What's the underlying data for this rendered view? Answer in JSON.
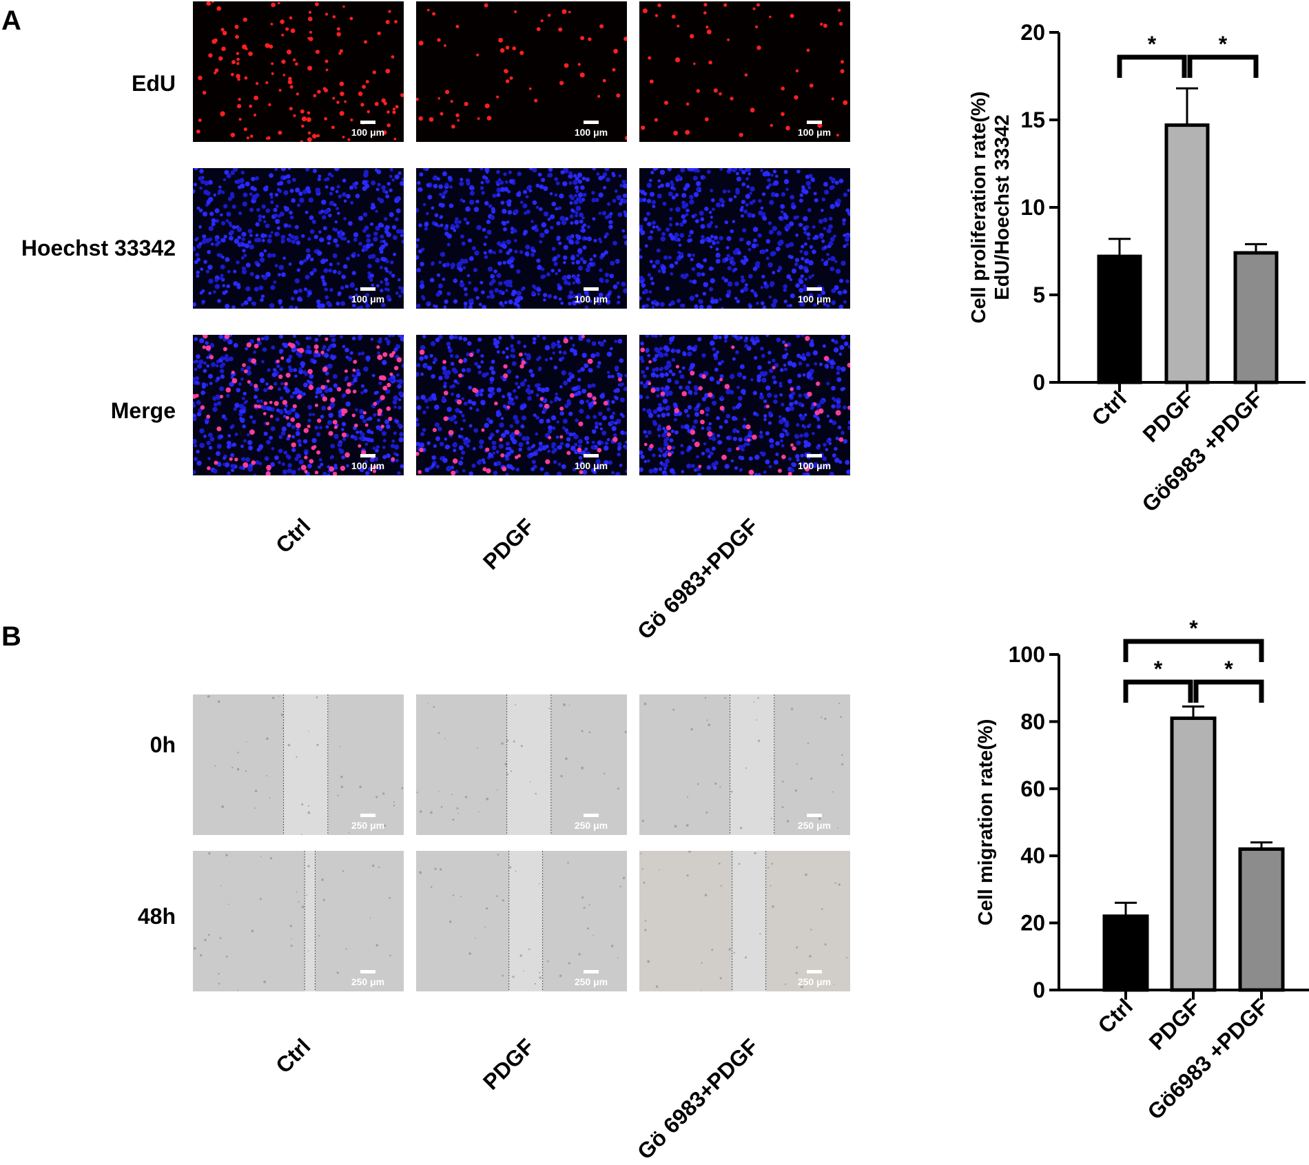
{
  "panelA": {
    "letter": "A",
    "rows": [
      "EdU",
      "Hoechst 33342",
      "Merge"
    ],
    "columns": [
      "Ctrl",
      "PDGF",
      "Gö 6983+PDGF"
    ],
    "scalebar": "100 μm"
  },
  "panelB": {
    "letter": "B",
    "rows": [
      "0h",
      "48h"
    ],
    "columns": [
      "Ctrl",
      "PDGF",
      "Gö 6983+PDGF"
    ],
    "scalebar": "250 μm"
  },
  "chart_data": [
    {
      "type": "bar",
      "categories": [
        "Ctrl",
        "PDGF",
        "Gö6983 +PDGF"
      ],
      "values": [
        7.2,
        14.7,
        7.4
      ],
      "errors": [
        1.0,
        2.1,
        0.5
      ],
      "bar_colors": [
        "#000000",
        "#b3b3b3",
        "#8c8c8c"
      ],
      "ylabel": "Cell proliferation rate(%)",
      "ylabel2": "EdU/Hoechst 33342",
      "ylim": [
        0,
        20
      ],
      "yticks": [
        "0",
        "5",
        "10",
        "15",
        "20"
      ],
      "significance": [
        {
          "from": 0,
          "to": 1,
          "label": "*",
          "level": 1
        },
        {
          "from": 1,
          "to": 2,
          "label": "*",
          "level": 1
        }
      ]
    },
    {
      "type": "bar",
      "categories": [
        "Ctrl",
        "PDGF",
        "Gö6983 +PDGF"
      ],
      "values": [
        22,
        81,
        42
      ],
      "errors": [
        4,
        3.5,
        2
      ],
      "bar_colors": [
        "#000000",
        "#b3b3b3",
        "#8c8c8c"
      ],
      "ylabel": "Cell migration rate(%)",
      "ylim": [
        0,
        100
      ],
      "yticks": [
        "0",
        "20",
        "40",
        "60",
        "80",
        "100"
      ],
      "significance": [
        {
          "from": 0,
          "to": 1,
          "label": "*",
          "level": 1
        },
        {
          "from": 1,
          "to": 2,
          "label": "*",
          "level": 1
        },
        {
          "from": 0,
          "to": 2,
          "label": "*",
          "level": 2
        }
      ]
    }
  ]
}
